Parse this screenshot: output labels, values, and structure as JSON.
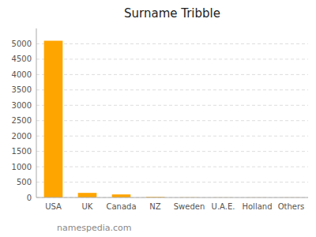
{
  "chart_data": {
    "type": "bar",
    "title": "Surname Tribble",
    "categories": [
      "USA",
      "UK",
      "Canada",
      "NZ",
      "Sweden",
      "U.A.E.",
      "Holland",
      "Others"
    ],
    "values": [
      5100,
      150,
      100,
      20,
      5,
      3,
      2,
      2
    ],
    "color": "#FFA500",
    "ylim": [
      0,
      5500
    ],
    "yticks": [
      0,
      500,
      1000,
      1500,
      2000,
      2500,
      3000,
      3500,
      4000,
      4500,
      5000
    ],
    "grid": true,
    "annotations": [
      "namespedia.com"
    ]
  }
}
